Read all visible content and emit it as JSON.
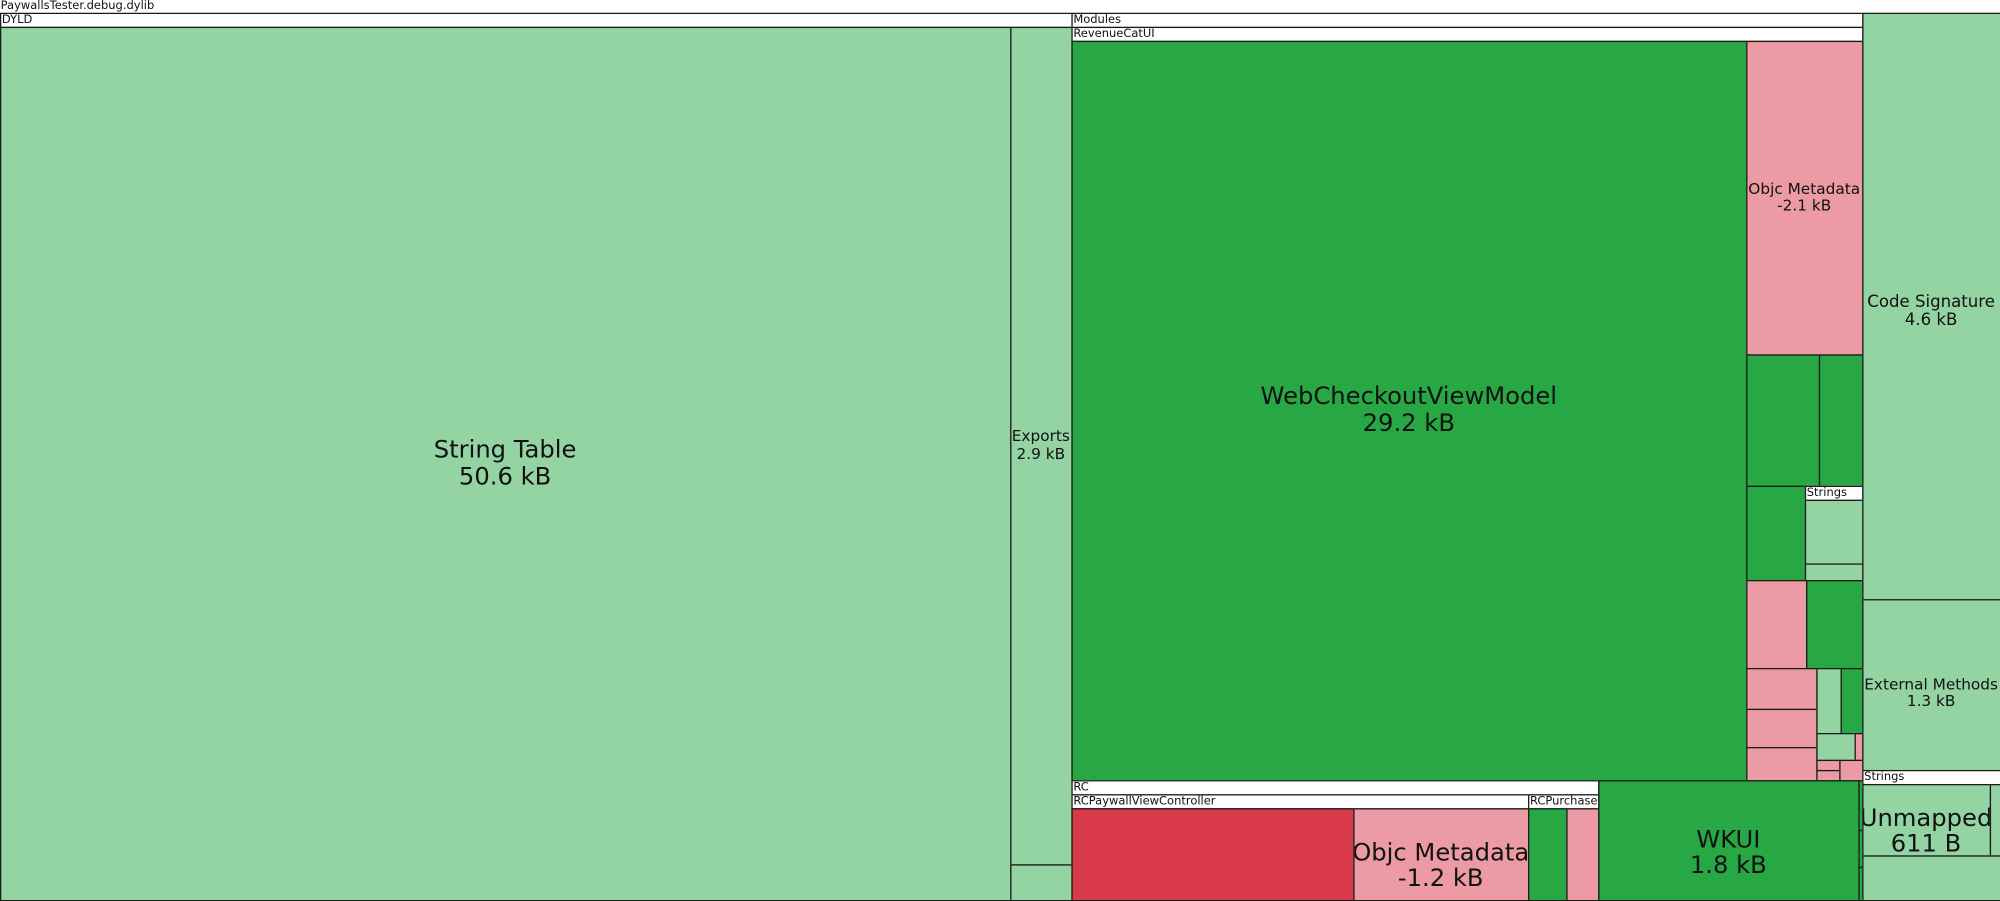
{
  "title": "PaywallsTester.debug.dylib",
  "groups": {
    "dyld": "DYLD",
    "modules": "Modules",
    "revenuecatui": "RevenueCatUI",
    "inner_strings": "Strings",
    "rc": "RC",
    "rcpaywall": "RCPaywallViewController",
    "rcpurchases": "RCPurchases",
    "strings": "Strings"
  },
  "nodes": [
    {
      "label": "String Table",
      "size": "50.6 kB"
    },
    {
      "label": "Exports",
      "size": "2.9 kB"
    },
    {
      "label": "WebCheckoutViewModel",
      "size": "29.2 kB"
    },
    {
      "label": "Objc Metadata",
      "size": "-2.1 kB"
    },
    {
      "label": "Code Signature",
      "size": "4.6 kB"
    },
    {
      "label": "External Methods",
      "size": "1.3 kB"
    },
    {
      "label": "Unmapped",
      "size": "611 B"
    },
    {
      "label": "Objc Metadata",
      "size": "-1.2 kB"
    },
    {
      "label": "WKUI",
      "size": "1.8 kB"
    }
  ]
}
